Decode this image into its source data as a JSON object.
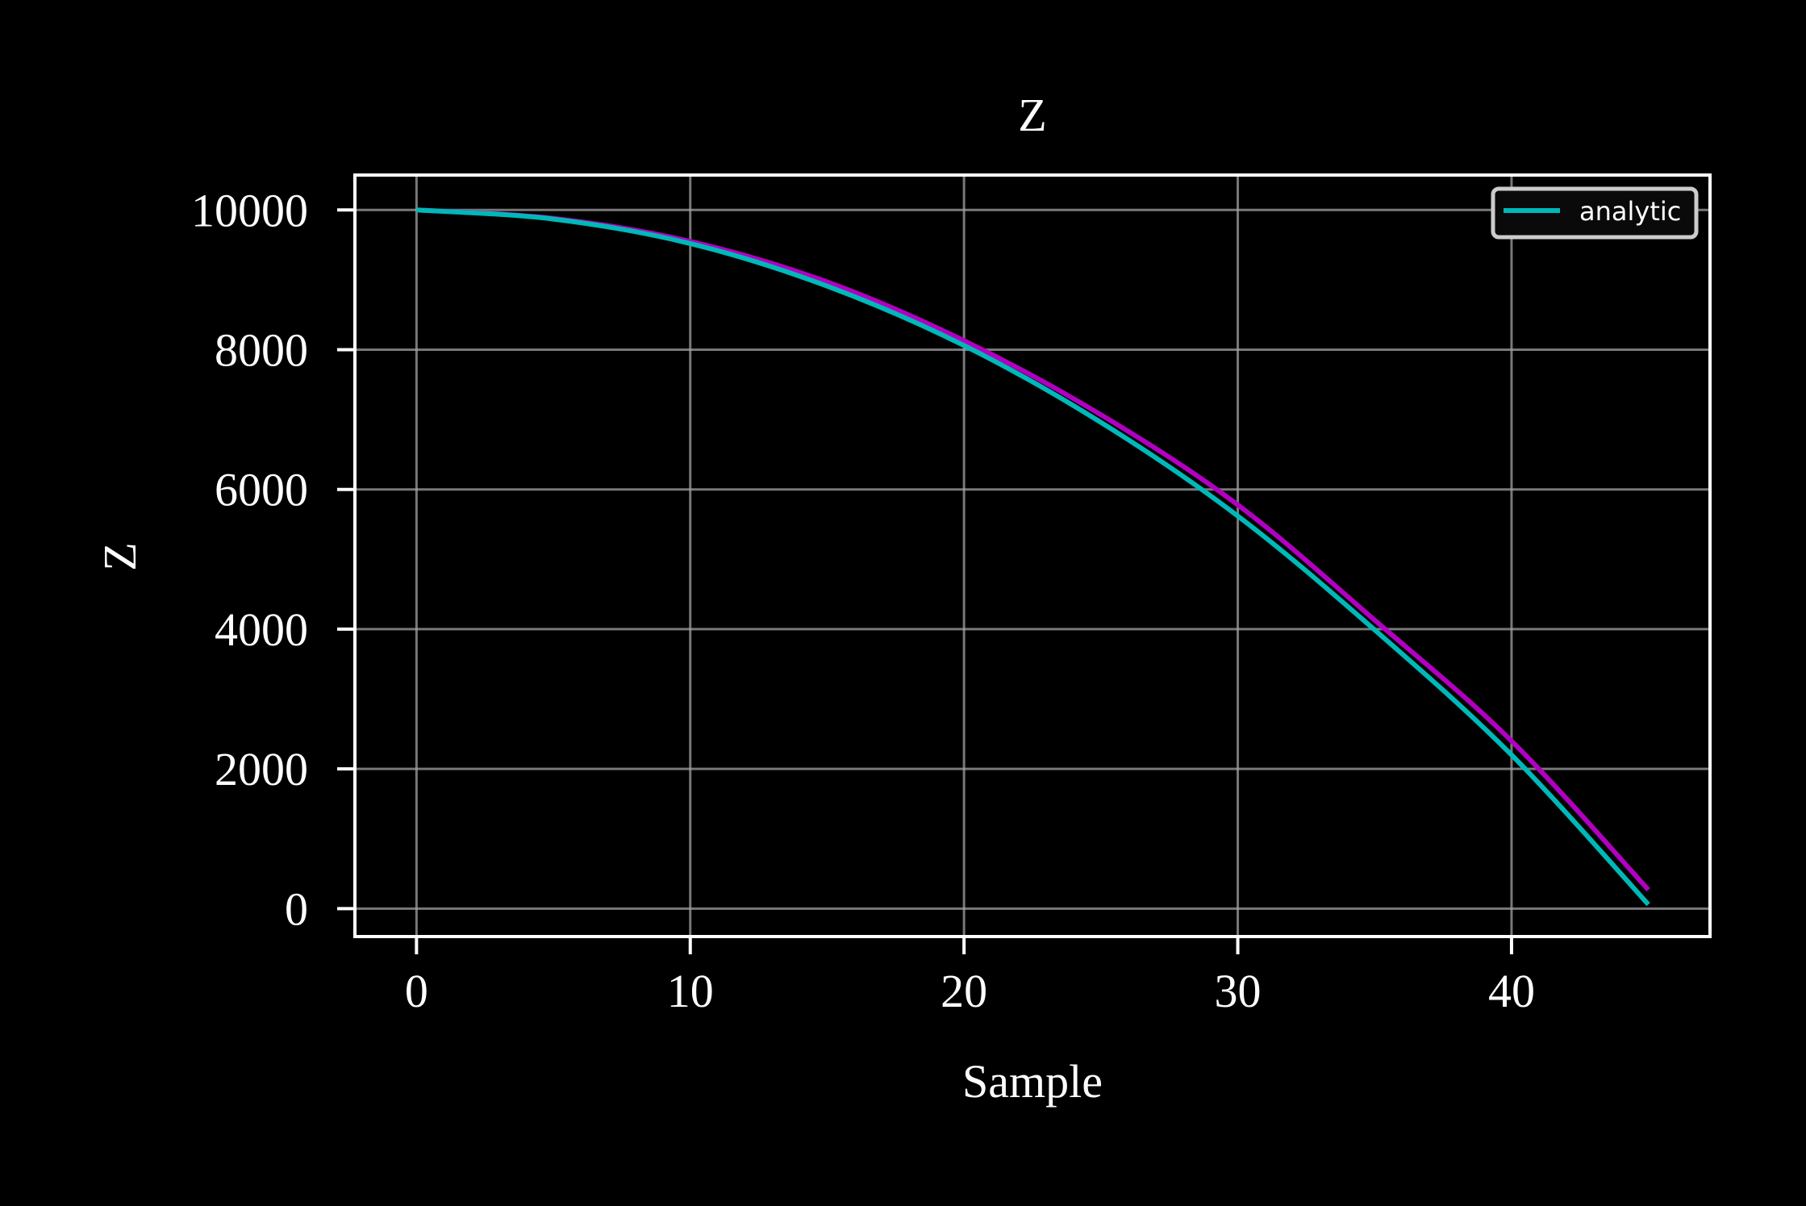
{
  "chart_data": {
    "type": "line",
    "title": "Z",
    "xlabel": "Sample",
    "ylabel": "Z",
    "xlim": [
      -2.25,
      47.25
    ],
    "ylim": [
      -400,
      10500
    ],
    "xticks": [
      0,
      10,
      20,
      30,
      40
    ],
    "yticks": [
      0,
      2000,
      4000,
      6000,
      8000,
      10000
    ],
    "grid": true,
    "legend_position": "top-right",
    "legend_entries": [
      "analytic"
    ],
    "background": "#000000",
    "series": [
      {
        "color": "#b000c0",
        "x": [
          0,
          5,
          10,
          15,
          20,
          25,
          30,
          35,
          40,
          45
        ],
        "y": [
          10000,
          9880,
          9550,
          8970,
          8130,
          7070,
          5780,
          4130,
          2400,
          270
        ]
      },
      {
        "name": "analytic",
        "color": "#00b8b8",
        "x": [
          0,
          5,
          10,
          15,
          20,
          25,
          30,
          35,
          40,
          45
        ],
        "y": [
          10000,
          9870,
          9520,
          8910,
          8060,
          6960,
          5620,
          3990,
          2200,
          60
        ]
      }
    ]
  }
}
